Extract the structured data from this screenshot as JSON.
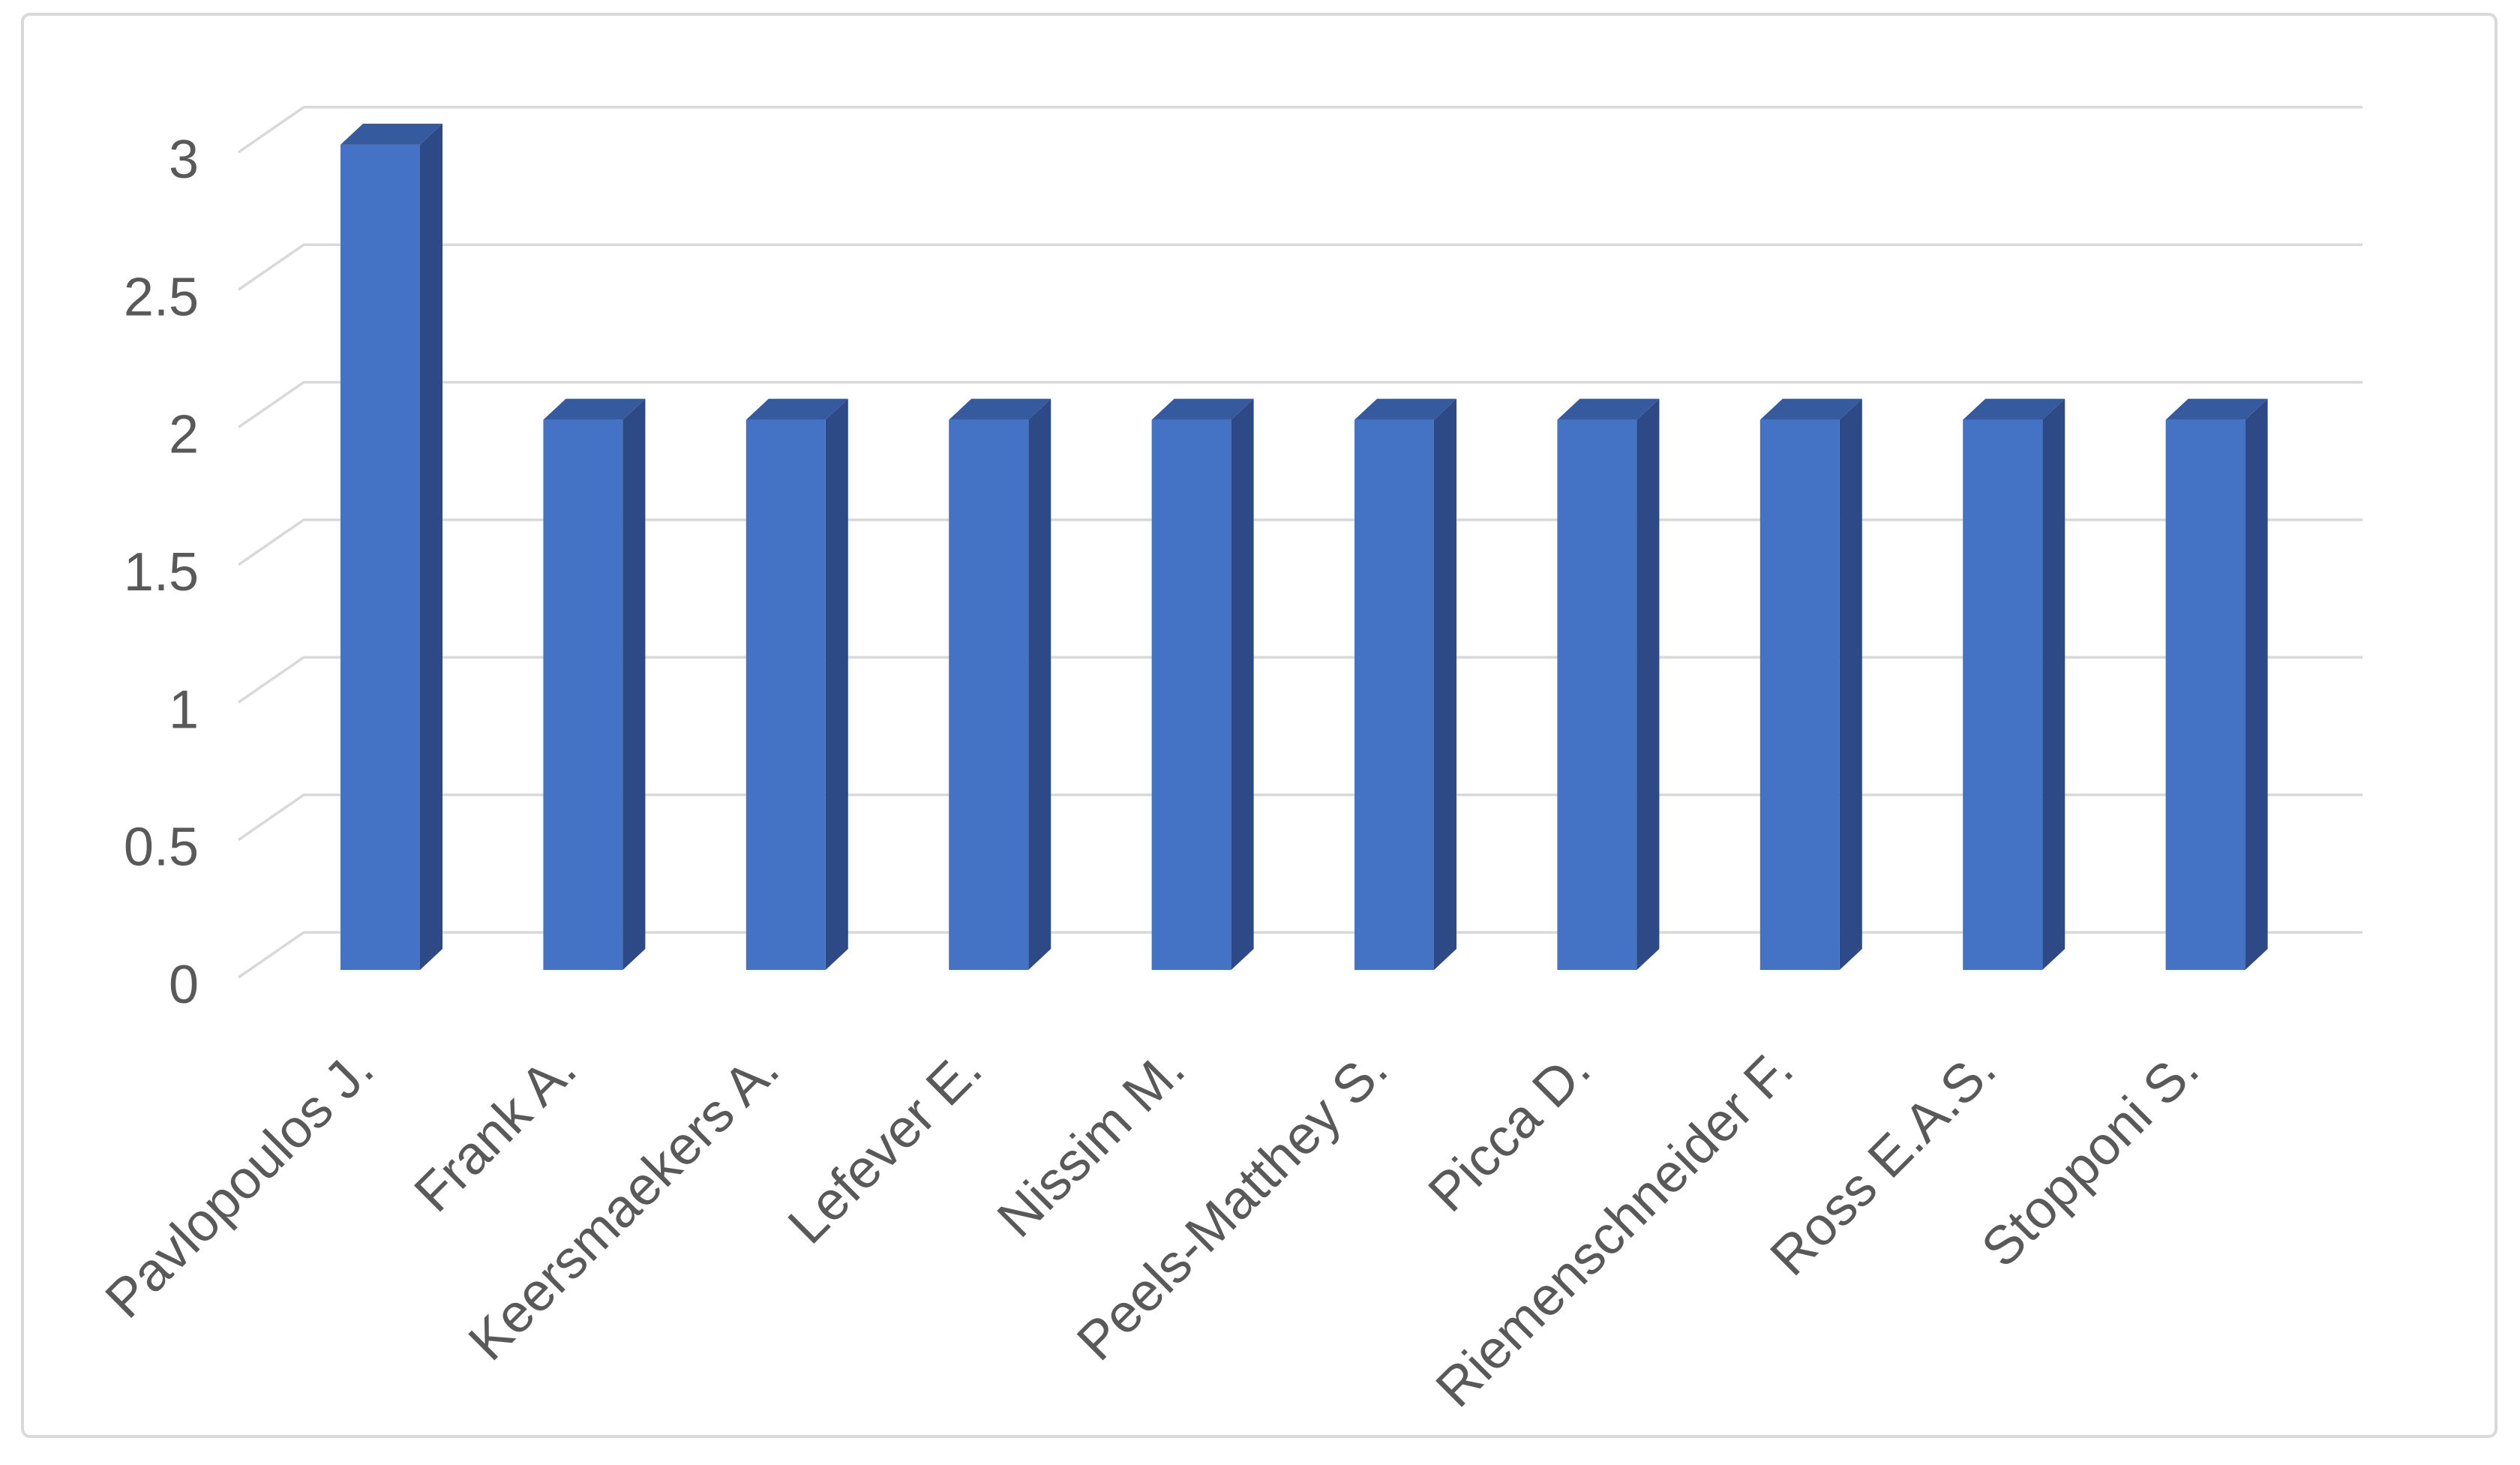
{
  "chart_data": {
    "type": "bar",
    "subtype": "3d-clustered-column",
    "title": "",
    "xlabel": "",
    "ylabel": "",
    "categories": [
      "Pavlopoulos J.",
      "Frank A.",
      "Keersmaekers A.",
      "Lefever E.",
      "Nissim M.",
      "Peels-Matthey S.",
      "Picca D.",
      "Riemenschneider F.",
      "Ross E.A.S.",
      "Stopponi S."
    ],
    "values": [
      3,
      2,
      2,
      2,
      2,
      2,
      2,
      2,
      2,
      2
    ],
    "ylim": [
      0,
      3
    ],
    "ytick_step": 0.5,
    "yticks": [
      0,
      0.5,
      1,
      1.5,
      2,
      2.5,
      3
    ],
    "ytick_labels": [
      "0",
      "0.5",
      "1",
      "1.5",
      "2",
      "2.5",
      "3"
    ],
    "grid": true,
    "legend": "none",
    "category_label_rotation_deg": 45,
    "colors": {
      "bar_front": "#4472C4",
      "bar_top": "#365A9E",
      "bar_side": "#2D4A86",
      "gridline": "#D9D9D9",
      "axis_text": "#595959",
      "frame_border": "#D9D9D9",
      "background": "#FFFFFF"
    }
  }
}
